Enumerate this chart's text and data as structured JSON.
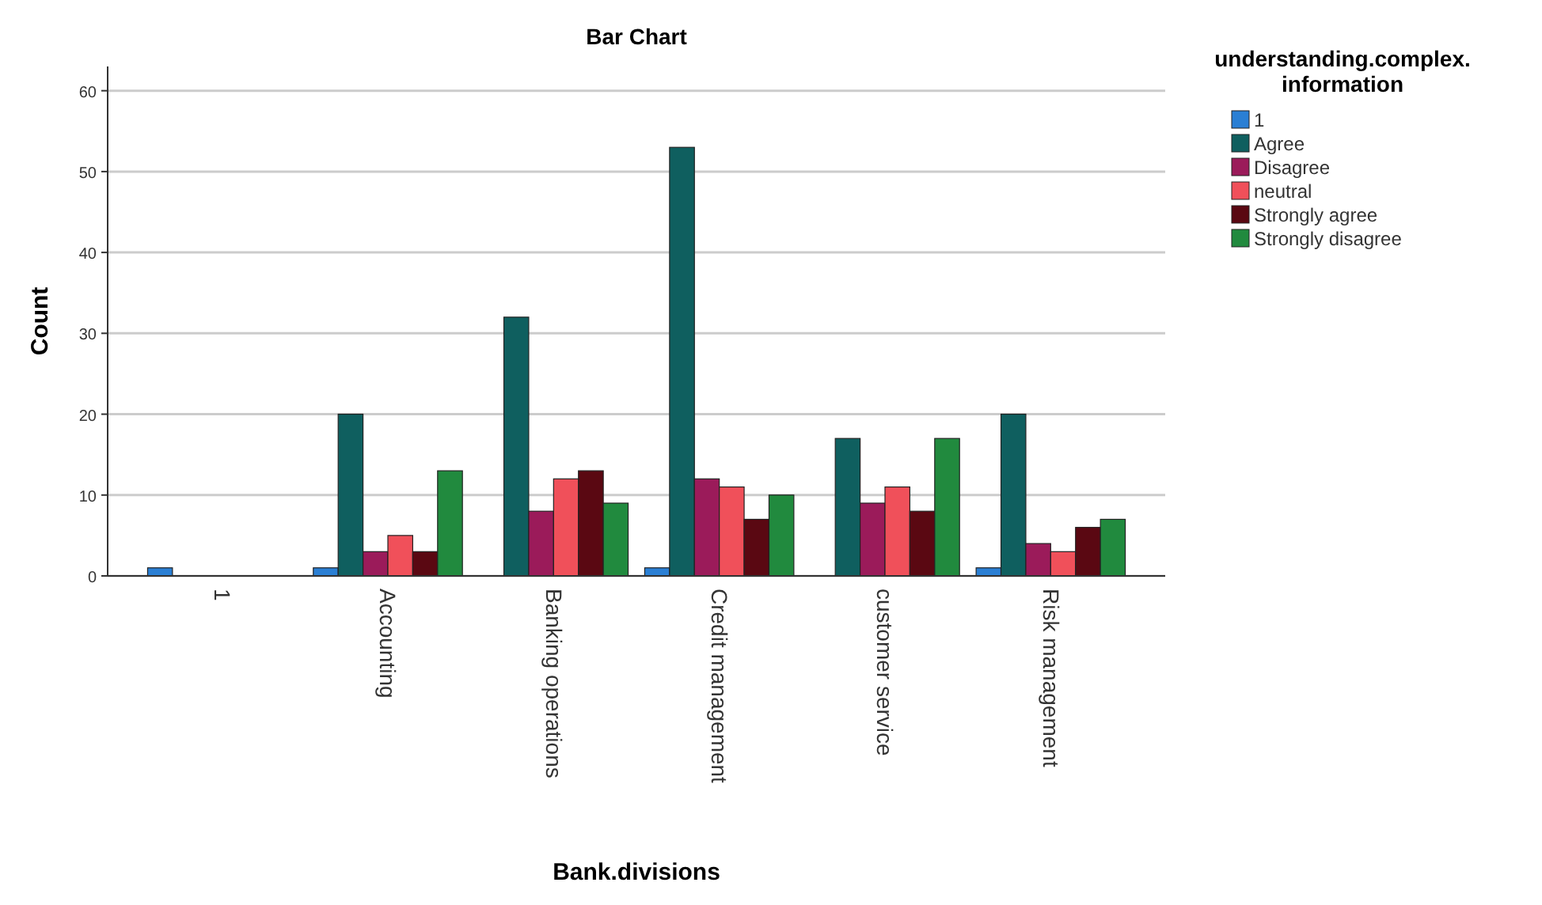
{
  "chart_data": {
    "type": "bar",
    "title": "Bar Chart",
    "xlabel": "Bank.divisions",
    "ylabel": "Count",
    "legend_title": "understanding.complex.\ninformation",
    "legend": "right",
    "categories": [
      "1",
      "Accounting",
      "Banking operations",
      "Credit management",
      "customer service",
      "Risk management"
    ],
    "ylim": [
      0,
      63
    ],
    "yticks": [
      0,
      10,
      20,
      30,
      40,
      50,
      60
    ],
    "grid": "y",
    "series": [
      {
        "name": "1",
        "color": "#2a7fd4",
        "values": [
          1,
          1,
          null,
          1,
          null,
          1
        ]
      },
      {
        "name": "Agree",
        "color": "#0f5f5f",
        "values": [
          null,
          20,
          32,
          53,
          17,
          20
        ]
      },
      {
        "name": "Disagree",
        "color": "#9b1b5a",
        "values": [
          null,
          3,
          8,
          12,
          9,
          4
        ]
      },
      {
        "name": "neutral",
        "color": "#f0505a",
        "values": [
          null,
          5,
          12,
          11,
          11,
          3
        ]
      },
      {
        "name": "Strongly agree",
        "color": "#5a0812",
        "values": [
          null,
          3,
          13,
          7,
          8,
          6
        ]
      },
      {
        "name": "Strongly disagree",
        "color": "#218a3e",
        "values": [
          null,
          13,
          9,
          10,
          17,
          7
        ]
      }
    ]
  }
}
